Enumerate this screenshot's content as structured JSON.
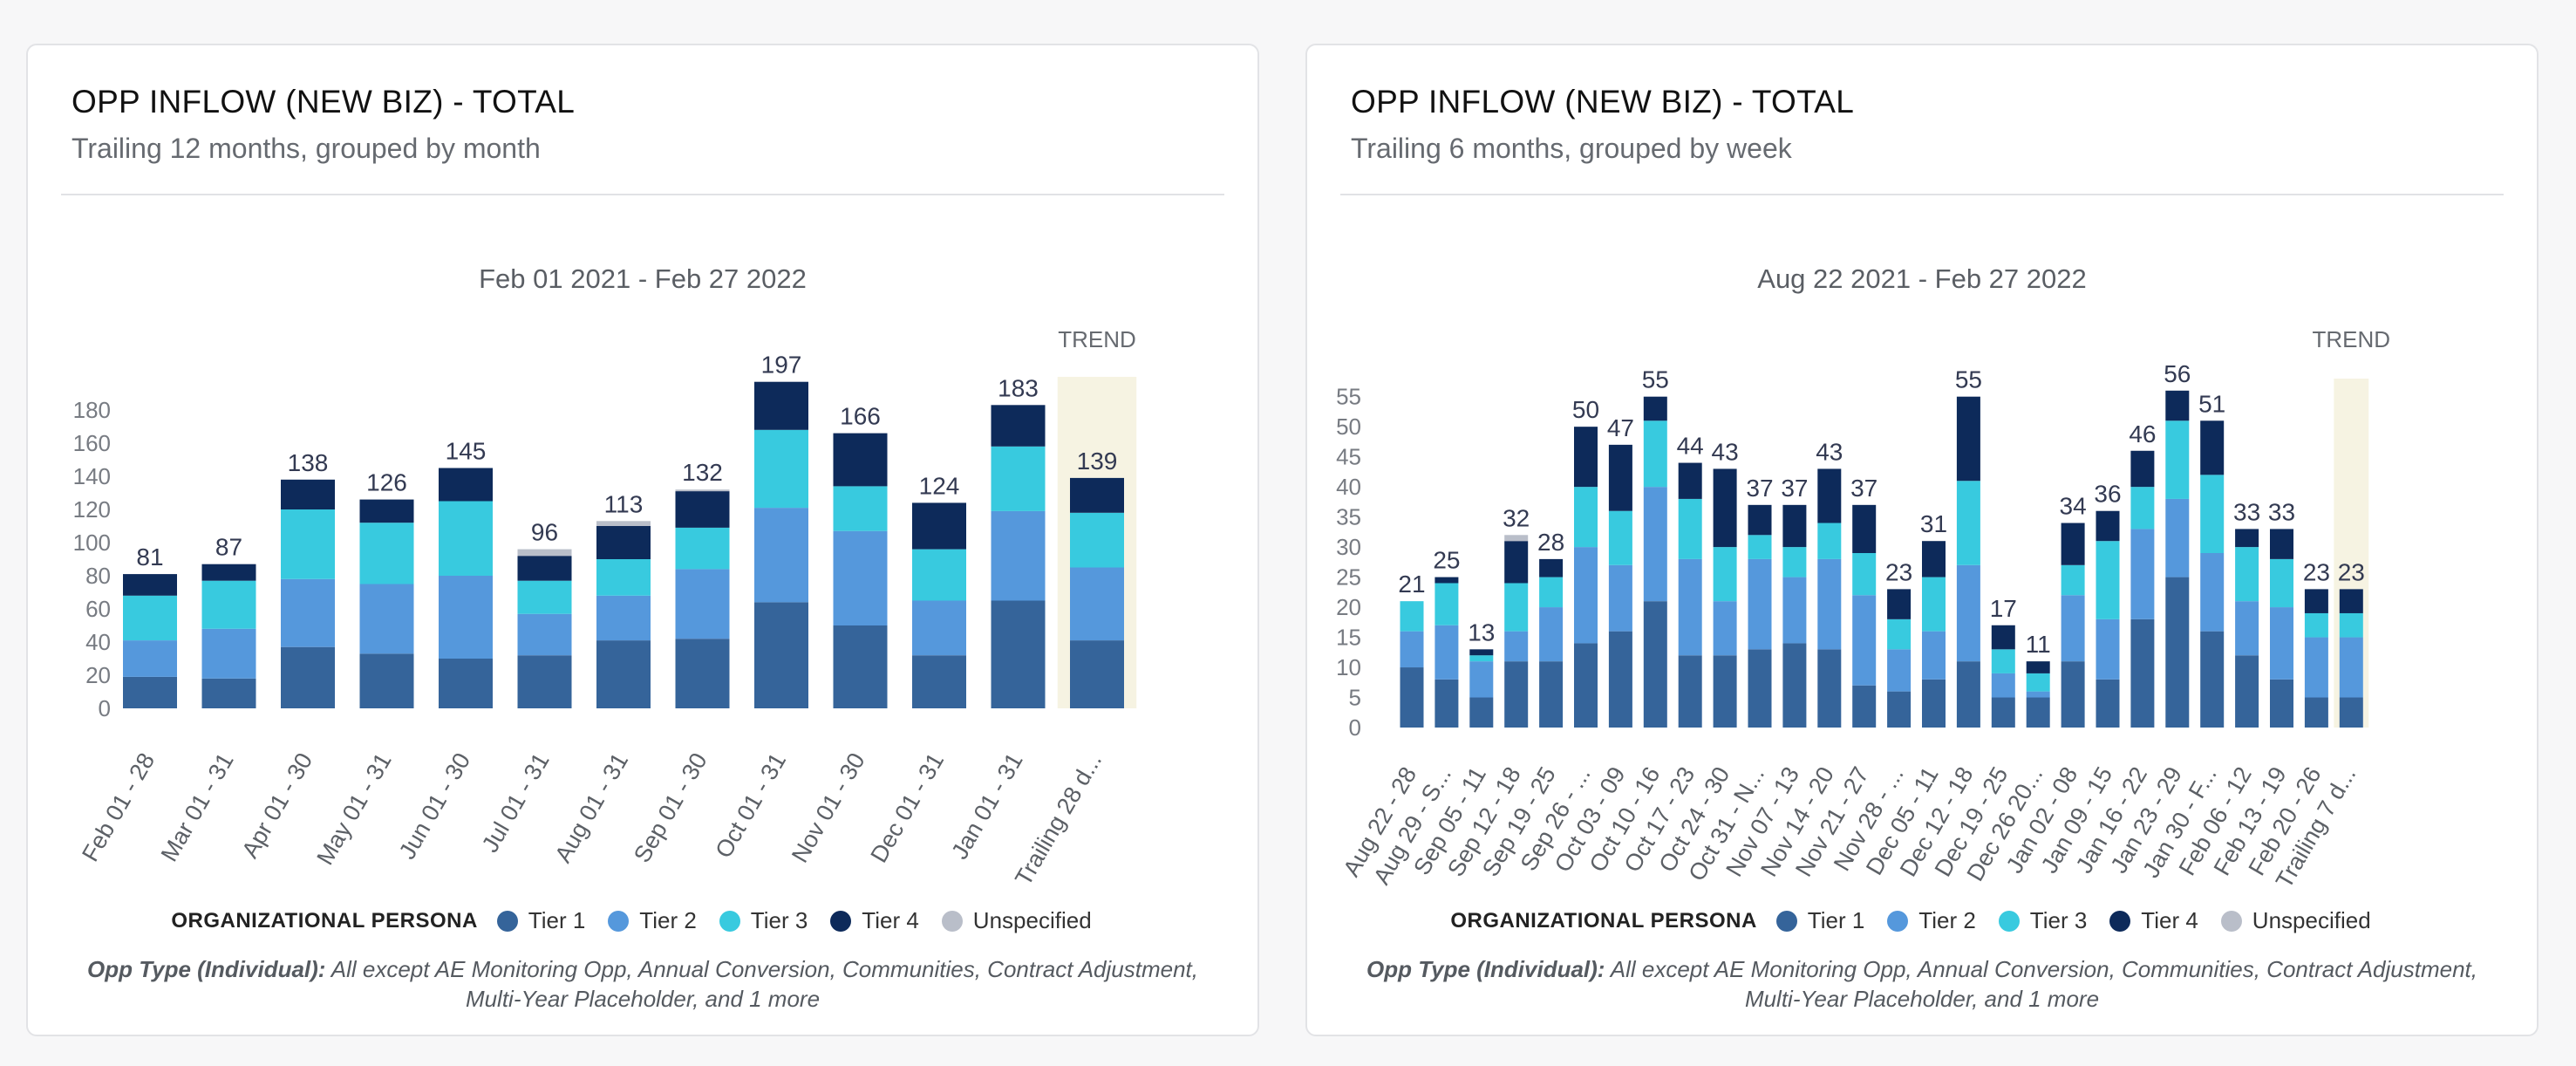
{
  "colors": {
    "tier1": "#35649a",
    "tier2": "#5598dc",
    "tier3": "#38cadf",
    "tier4": "#0d2a5a",
    "unspecified": "#b9bec9",
    "trend_bg": "#f6f3e2"
  },
  "panels": [
    {
      "title": "OPP INFLOW (NEW BIZ) - TOTAL",
      "subtitle": "Trailing 12 months, grouped by month",
      "legend": {
        "title": "ORGANIZATIONAL PERSONA",
        "items": [
          "Tier 1",
          "Tier 2",
          "Tier 3",
          "Tier 4",
          "Unspecified"
        ]
      },
      "footnote": {
        "label": "Opp Type (Individual):",
        "line1": "All except AE Monitoring Opp, Annual Conversion, Communities, Contract Adjustment,",
        "line2": "Multi-Year Placeholder, and 1 more"
      }
    },
    {
      "title": "OPP INFLOW (NEW BIZ) - TOTAL",
      "subtitle": "Trailing 6 months, grouped by week",
      "legend": {
        "title": "ORGANIZATIONAL PERSONA",
        "items": [
          "Tier 1",
          "Tier 2",
          "Tier 3",
          "Tier 4",
          "Unspecified"
        ]
      },
      "footnote": {
        "label": "Opp Type (Individual):",
        "line1": "All except AE Monitoring Opp, Annual Conversion, Communities, Contract Adjustment,",
        "line2": "Multi-Year Placeholder, and 1 more"
      }
    }
  ],
  "chart_data": [
    {
      "type": "bar",
      "stacked": true,
      "title": "OPP INFLOW (NEW BIZ) - TOTAL",
      "date_range": "Feb 01 2021 - Feb 27 2022",
      "trend_label": "TREND",
      "ylim": [
        0,
        200
      ],
      "yticks": [
        0,
        20,
        40,
        60,
        80,
        100,
        120,
        140,
        160,
        180
      ],
      "categories": [
        "Feb 01 - 28",
        "Mar 01 - 31",
        "Apr 01 - 30",
        "May 01 - 31",
        "Jun 01 - 30",
        "Jul 01 - 31",
        "Aug 01 - 31",
        "Sep 01 - 30",
        "Oct 01 - 31",
        "Nov 01 - 30",
        "Dec 01 - 31",
        "Jan 01 - 31",
        "Trailing 28 d..."
      ],
      "totals": [
        81,
        87,
        138,
        126,
        145,
        96,
        113,
        132,
        197,
        166,
        124,
        183,
        139
      ],
      "series": [
        {
          "name": "Tier 1",
          "values": [
            19,
            18,
            37,
            33,
            30,
            32,
            41,
            42,
            64,
            50,
            32,
            65,
            41
          ]
        },
        {
          "name": "Tier 2",
          "values": [
            22,
            30,
            41,
            42,
            50,
            25,
            27,
            42,
            57,
            57,
            33,
            54,
            44
          ]
        },
        {
          "name": "Tier 3",
          "values": [
            27,
            29,
            42,
            37,
            45,
            20,
            22,
            25,
            47,
            27,
            31,
            39,
            33
          ]
        },
        {
          "name": "Tier 4",
          "values": [
            13,
            10,
            18,
            14,
            20,
            15,
            20,
            22,
            29,
            32,
            28,
            25,
            21
          ]
        },
        {
          "name": "Unspecified",
          "values": [
            0,
            0,
            0,
            0,
            0,
            4,
            3,
            1,
            0,
            0,
            0,
            0,
            0
          ]
        }
      ]
    },
    {
      "type": "bar",
      "stacked": true,
      "title": "OPP INFLOW (NEW BIZ) - TOTAL",
      "date_range": "Aug 22 2021 - Feb 27 2022",
      "trend_label": "TREND",
      "ylim": [
        0,
        58
      ],
      "yticks": [
        0,
        5,
        10,
        15,
        20,
        25,
        30,
        35,
        40,
        45,
        50,
        55
      ],
      "categories": [
        "Aug 22 - 28",
        "Aug 29 - S...",
        "Sep 05 - 11",
        "Sep 12 - 18",
        "Sep 19 - 25",
        "Sep 26 - ...",
        "Oct 03 - 09",
        "Oct 10 - 16",
        "Oct 17 - 23",
        "Oct 24 - 30",
        "Oct 31 - N...",
        "Nov 07 - 13",
        "Nov 14 - 20",
        "Nov 21 - 27",
        "Nov 28 - ...",
        "Dec 05 - 11",
        "Dec 12 - 18",
        "Dec 19 - 25",
        "Dec 26 20...",
        "Jan 02 - 08",
        "Jan 09 - 15",
        "Jan 16 - 22",
        "Jan 23 - 29",
        "Jan 30 - F...",
        "Feb 06 - 12",
        "Feb 13 - 19",
        "Feb 20 - 26",
        "Trailing 7 d..."
      ],
      "totals": [
        21,
        25,
        13,
        32,
        28,
        50,
        47,
        55,
        44,
        43,
        37,
        37,
        43,
        37,
        23,
        31,
        55,
        17,
        11,
        34,
        36,
        46,
        56,
        51,
        33,
        33,
        23,
        23
      ],
      "series": [
        {
          "name": "Tier 1",
          "values": [
            10,
            8,
            5,
            11,
            11,
            14,
            16,
            21,
            12,
            12,
            13,
            14,
            13,
            7,
            6,
            8,
            11,
            5,
            5,
            11,
            8,
            18,
            25,
            16,
            12,
            8,
            5,
            5
          ]
        },
        {
          "name": "Tier 2",
          "values": [
            6,
            9,
            6,
            5,
            9,
            16,
            11,
            19,
            16,
            9,
            15,
            11,
            15,
            15,
            7,
            8,
            16,
            4,
            1,
            11,
            10,
            15,
            13,
            13,
            9,
            12,
            10,
            10
          ]
        },
        {
          "name": "Tier 3",
          "values": [
            5,
            7,
            1,
            8,
            5,
            10,
            9,
            11,
            10,
            9,
            4,
            5,
            6,
            7,
            5,
            9,
            14,
            4,
            3,
            5,
            13,
            7,
            13,
            13,
            9,
            8,
            4,
            4
          ]
        },
        {
          "name": "Tier 4",
          "values": [
            0,
            1,
            1,
            7,
            3,
            10,
            11,
            4,
            6,
            13,
            5,
            7,
            9,
            8,
            5,
            6,
            14,
            4,
            2,
            7,
            5,
            6,
            5,
            9,
            3,
            5,
            4,
            4
          ]
        },
        {
          "name": "Unspecified",
          "values": [
            0,
            0,
            0,
            1,
            0,
            0,
            0,
            0,
            0,
            0,
            0,
            0,
            0,
            0,
            0,
            0,
            0,
            0,
            0,
            0,
            0,
            0,
            0,
            0,
            0,
            0,
            0,
            0
          ]
        }
      ]
    }
  ]
}
